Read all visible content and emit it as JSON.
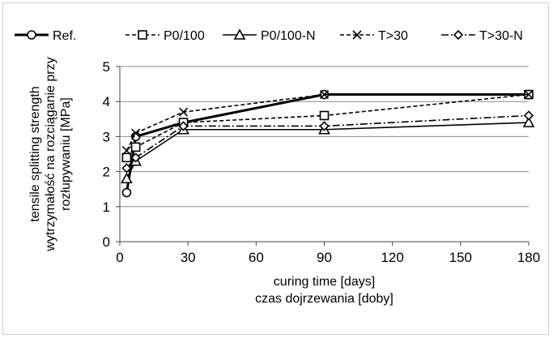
{
  "chart_data": {
    "type": "line",
    "xlabel": [
      "curing time [days]",
      "czas dojrzewania  [doby]"
    ],
    "ylabel": [
      "tensile splitting  strength",
      "wytrzymałość na rozciąganie przy",
      "rozłupywaniu [MPa]"
    ],
    "xlim": [
      0,
      180
    ],
    "ylim": [
      0,
      5
    ],
    "xticks": [
      0,
      30,
      60,
      90,
      120,
      150,
      180
    ],
    "yticks": [
      0,
      1,
      2,
      3,
      4,
      5
    ],
    "grid": "horizontal",
    "legend_position": "top",
    "series": [
      {
        "name": "Ref.",
        "marker": "circle",
        "dash": "solid",
        "width": 3,
        "x": [
          3,
          7,
          28,
          90,
          180
        ],
        "y": [
          1.4,
          3.0,
          3.4,
          4.2,
          4.2
        ]
      },
      {
        "name": "P0/100",
        "marker": "square",
        "dash": "dashed",
        "width": 1.6,
        "x": [
          3,
          7,
          28,
          90,
          180
        ],
        "y": [
          2.4,
          2.7,
          3.4,
          3.6,
          4.2
        ]
      },
      {
        "name": "P0/100-N",
        "marker": "triangle",
        "dash": "solid",
        "width": 1.6,
        "x": [
          3,
          7,
          28,
          90,
          180
        ],
        "y": [
          1.8,
          2.3,
          3.2,
          3.2,
          3.4
        ]
      },
      {
        "name": "T>30",
        "marker": "x",
        "dash": "dashed",
        "width": 1.6,
        "x": [
          3,
          7,
          28,
          90,
          180
        ],
        "y": [
          2.6,
          3.1,
          3.7,
          4.2,
          4.2
        ]
      },
      {
        "name": "T>30-N",
        "marker": "diamond",
        "dash": "dashdot",
        "width": 1.6,
        "x": [
          3,
          7,
          28,
          90,
          180
        ],
        "y": [
          2.1,
          2.4,
          3.3,
          3.3,
          3.6
        ]
      }
    ],
    "colors": {
      "line": "#000000",
      "grid": "#888888",
      "frame": "#cfcfcf"
    }
  }
}
